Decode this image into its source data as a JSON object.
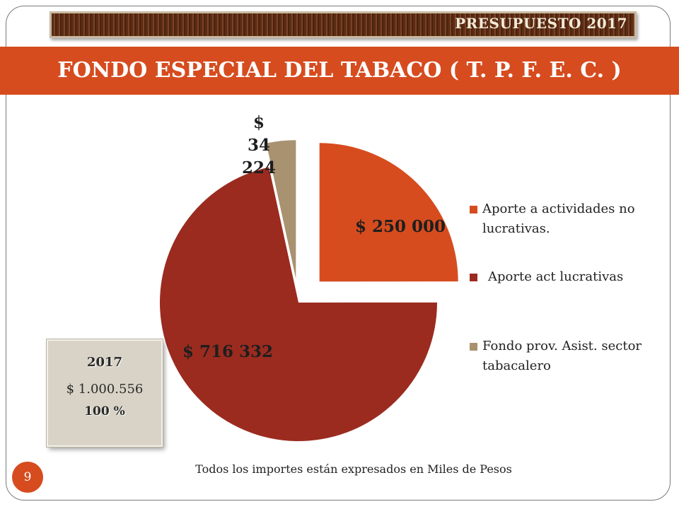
{
  "header": {
    "budget_label": "PRESUPUESTO 2017"
  },
  "title": "FONDO ESPECIAL DEL TABACO ( T. P. F. E. C. )",
  "chart_data": {
    "type": "pie",
    "slices": [
      {
        "name": "Aporte a actividades no lucrativas.",
        "value": 250000,
        "label": "$ 250 000",
        "color": "#d64c1f"
      },
      {
        "name": "Aporte act lucrativas",
        "value": 716332,
        "label": "$ 716 332",
        "color": "#9b2b1f"
      },
      {
        "name": "Fondo prov. Asist. sector tabacalero",
        "value": 34224,
        "label": "$ 34 224",
        "color": "#a89270"
      }
    ],
    "legend": {
      "position": "right",
      "items": [
        {
          "text": "Aporte a actividades no lucrativas.",
          "color": "#d64c1f"
        },
        {
          "text": "Aporte act lucrativas",
          "color": "#9b2b1f"
        },
        {
          "text": "Fondo prov. Asist. sector tabacalero",
          "color": "#a89270"
        }
      ]
    }
  },
  "total_box": {
    "year": "2017",
    "amount": "$ 1.000.556",
    "percent": "100 %"
  },
  "footnote": "Todos los importes están expresados en Miles de Pesos",
  "page_number": "9"
}
